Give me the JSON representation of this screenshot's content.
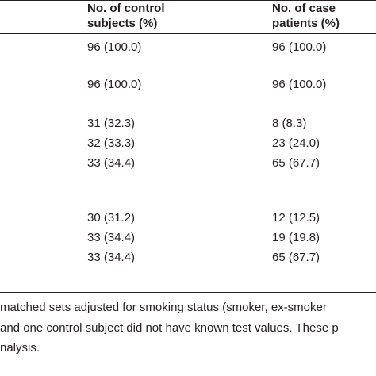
{
  "header": {
    "columns": [
      "No. of control subjects (%)",
      "No. of case patients (%)"
    ]
  },
  "table": {
    "groups": [
      [
        [
          "96 (100.0)",
          "96 (100.0)"
        ]
      ],
      [
        [
          "96 (100.0)",
          "96 (100.0)"
        ]
      ],
      [
        [
          "31 (32.3)",
          "8 (8.3)"
        ],
        [
          "32 (33.3)",
          "23 (24.0)"
        ],
        [
          "33 (34.4)",
          "65 (67.7)"
        ]
      ],
      [
        [
          "30 (31.2)",
          "12 (12.5)"
        ],
        [
          "33 (34.4)",
          "19 (19.8)"
        ],
        [
          "33 (34.4)",
          "65 (67.7)"
        ]
      ]
    ]
  },
  "footnotes": [
    "matched sets adjusted for smoking status (smoker, ex-smoker",
    "and one control subject did not have known test values. These p",
    "nalysis."
  ]
}
